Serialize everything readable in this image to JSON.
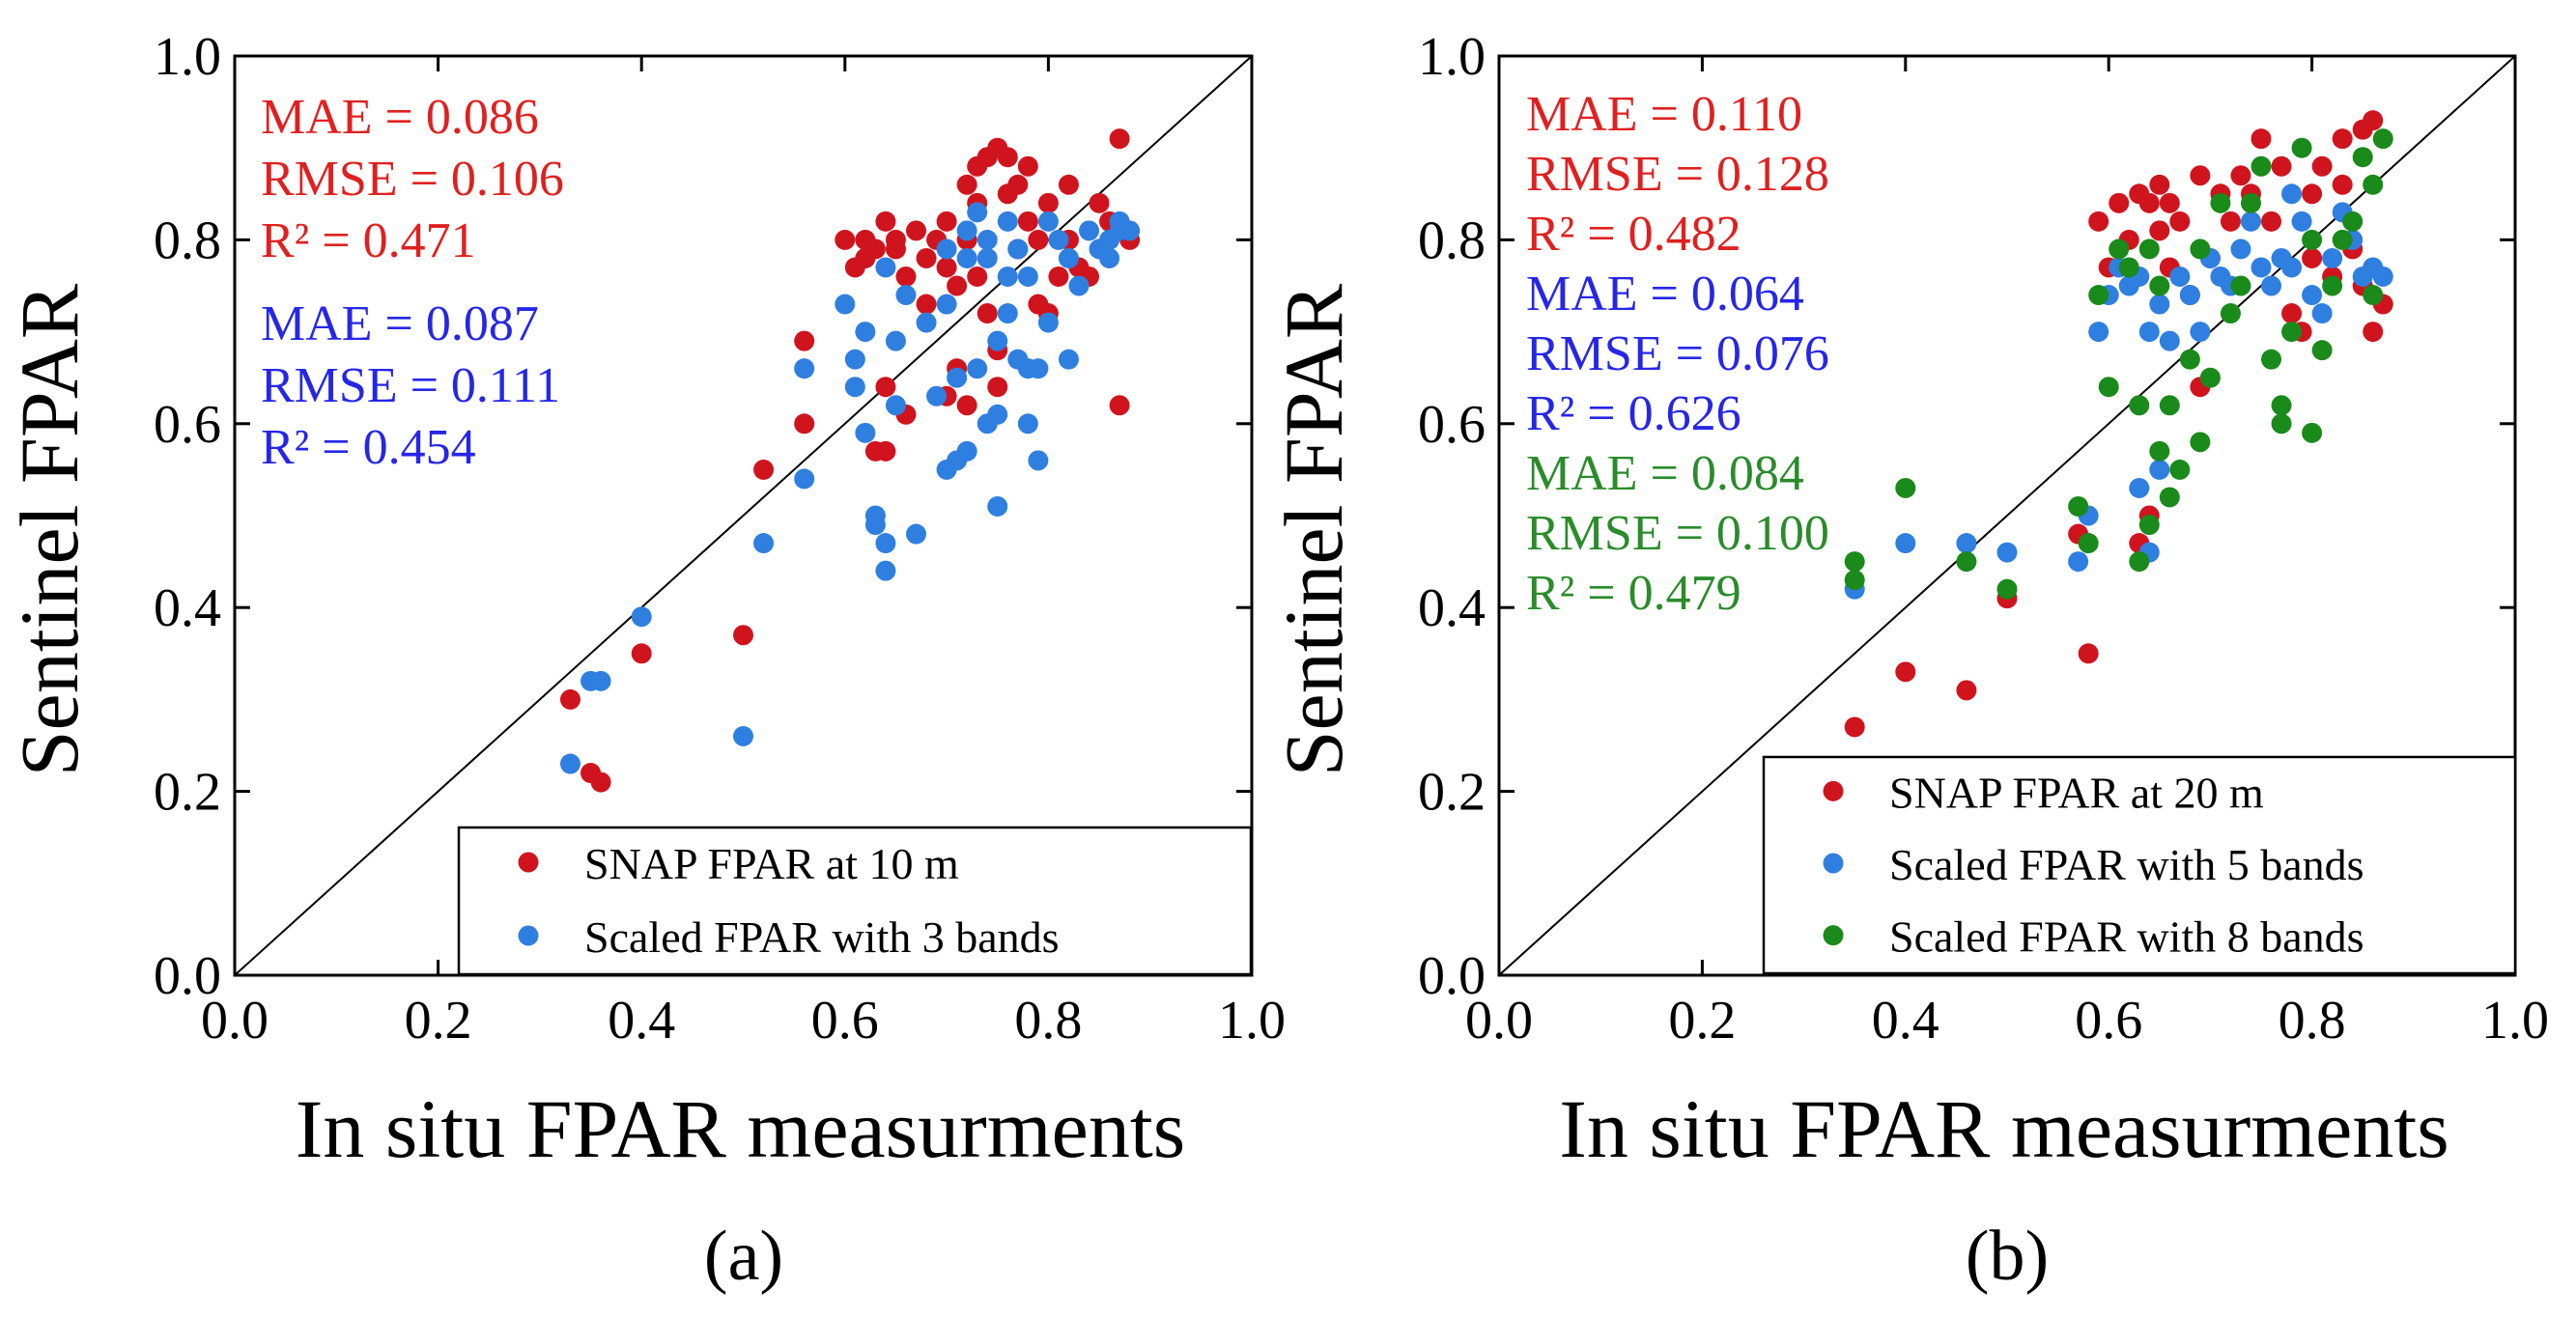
{
  "colors": {
    "snap": "#d0141e",
    "blue": "#2f7fe0",
    "green": "#1a8a1a",
    "axis": "#000000",
    "stat_red": "#e02020",
    "stat_blue": "#2626e8",
    "stat_green": "#2a8c2a"
  },
  "chart_data": [
    {
      "type": "scatter",
      "panel_label": "(a)",
      "xlabel": "In situ FPAR measurments",
      "ylabel": "Sentinel FPAR",
      "xlim": [
        0.0,
        1.0
      ],
      "ylim": [
        0.0,
        1.0
      ],
      "xticks": [
        "0.0",
        "0.2",
        "0.4",
        "0.6",
        "0.8",
        "1.0"
      ],
      "yticks": [
        "0.0",
        "0.2",
        "0.4",
        "0.6",
        "0.8",
        "1.0"
      ],
      "legend_position": "bottom-right",
      "stats": [
        {
          "color": "stat_red",
          "lines": [
            "MAE = 0.086",
            "RMSE = 0.106",
            "R² = 0.471"
          ]
        },
        {
          "color": "stat_blue",
          "lines": [
            "MAE = 0.087",
            "RMSE = 0.111",
            "R² = 0.454"
          ]
        }
      ],
      "series": [
        {
          "name": "SNAP FPAR at 10 m",
          "color": "snap",
          "points": [
            [
              0.33,
              0.3
            ],
            [
              0.35,
              0.22
            ],
            [
              0.36,
              0.21
            ],
            [
              0.4,
              0.35
            ],
            [
              0.5,
              0.37
            ],
            [
              0.52,
              0.55
            ],
            [
              0.56,
              0.6
            ],
            [
              0.56,
              0.69
            ],
            [
              0.6,
              0.8
            ],
            [
              0.61,
              0.77
            ],
            [
              0.62,
              0.78
            ],
            [
              0.62,
              0.8
            ],
            [
              0.63,
              0.79
            ],
            [
              0.63,
              0.57
            ],
            [
              0.64,
              0.57
            ],
            [
              0.64,
              0.64
            ],
            [
              0.64,
              0.82
            ],
            [
              0.65,
              0.8
            ],
            [
              0.65,
              0.79
            ],
            [
              0.66,
              0.76
            ],
            [
              0.66,
              0.61
            ],
            [
              0.67,
              0.81
            ],
            [
              0.68,
              0.78
            ],
            [
              0.69,
              0.8
            ],
            [
              0.7,
              0.82
            ],
            [
              0.7,
              0.77
            ],
            [
              0.71,
              0.75
            ],
            [
              0.71,
              0.66
            ],
            [
              0.72,
              0.8
            ],
            [
              0.72,
              0.86
            ],
            [
              0.73,
              0.84
            ],
            [
              0.73,
              0.88
            ],
            [
              0.74,
              0.72
            ],
            [
              0.74,
              0.89
            ],
            [
              0.75,
              0.9
            ],
            [
              0.75,
              0.68
            ],
            [
              0.75,
              0.64
            ],
            [
              0.76,
              0.85
            ],
            [
              0.76,
              0.89
            ],
            [
              0.77,
              0.86
            ],
            [
              0.77,
              0.79
            ],
            [
              0.78,
              0.82
            ],
            [
              0.78,
              0.88
            ],
            [
              0.79,
              0.8
            ],
            [
              0.79,
              0.73
            ],
            [
              0.8,
              0.72
            ],
            [
              0.8,
              0.84
            ],
            [
              0.81,
              0.76
            ],
            [
              0.82,
              0.8
            ],
            [
              0.82,
              0.86
            ],
            [
              0.83,
              0.77
            ],
            [
              0.84,
              0.76
            ],
            [
              0.85,
              0.84
            ],
            [
              0.86,
              0.82
            ],
            [
              0.87,
              0.91
            ],
            [
              0.87,
              0.62
            ],
            [
              0.88,
              0.8
            ],
            [
              0.73,
              0.76
            ],
            [
              0.68,
              0.73
            ],
            [
              0.7,
              0.63
            ],
            [
              0.72,
              0.62
            ]
          ]
        },
        {
          "name": "Scaled FPAR with 3 bands",
          "color": "blue",
          "points": [
            [
              0.33,
              0.23
            ],
            [
              0.35,
              0.32
            ],
            [
              0.36,
              0.32
            ],
            [
              0.4,
              0.39
            ],
            [
              0.5,
              0.26
            ],
            [
              0.52,
              0.47
            ],
            [
              0.56,
              0.54
            ],
            [
              0.56,
              0.66
            ],
            [
              0.6,
              0.73
            ],
            [
              0.61,
              0.67
            ],
            [
              0.61,
              0.64
            ],
            [
              0.62,
              0.59
            ],
            [
              0.62,
              0.7
            ],
            [
              0.63,
              0.5
            ],
            [
              0.63,
              0.49
            ],
            [
              0.64,
              0.44
            ],
            [
              0.64,
              0.47
            ],
            [
              0.64,
              0.77
            ],
            [
              0.65,
              0.62
            ],
            [
              0.65,
              0.69
            ],
            [
              0.66,
              0.74
            ],
            [
              0.67,
              0.48
            ],
            [
              0.68,
              0.71
            ],
            [
              0.69,
              0.63
            ],
            [
              0.7,
              0.55
            ],
            [
              0.7,
              0.73
            ],
            [
              0.7,
              0.79
            ],
            [
              0.71,
              0.56
            ],
            [
              0.71,
              0.65
            ],
            [
              0.72,
              0.57
            ],
            [
              0.72,
              0.78
            ],
            [
              0.72,
              0.81
            ],
            [
              0.73,
              0.66
            ],
            [
              0.73,
              0.83
            ],
            [
              0.74,
              0.6
            ],
            [
              0.74,
              0.8
            ],
            [
              0.75,
              0.61
            ],
            [
              0.75,
              0.51
            ],
            [
              0.75,
              0.69
            ],
            [
              0.76,
              0.82
            ],
            [
              0.76,
              0.72
            ],
            [
              0.77,
              0.67
            ],
            [
              0.77,
              0.79
            ],
            [
              0.78,
              0.6
            ],
            [
              0.78,
              0.76
            ],
            [
              0.79,
              0.56
            ],
            [
              0.79,
              0.66
            ],
            [
              0.8,
              0.82
            ],
            [
              0.8,
              0.71
            ],
            [
              0.81,
              0.8
            ],
            [
              0.82,
              0.67
            ],
            [
              0.82,
              0.78
            ],
            [
              0.83,
              0.75
            ],
            [
              0.84,
              0.81
            ],
            [
              0.85,
              0.79
            ],
            [
              0.86,
              0.8
            ],
            [
              0.86,
              0.78
            ],
            [
              0.87,
              0.82
            ],
            [
              0.87,
              0.81
            ],
            [
              0.88,
              0.81
            ],
            [
              0.74,
              0.78
            ],
            [
              0.76,
              0.76
            ],
            [
              0.78,
              0.66
            ]
          ]
        }
      ]
    },
    {
      "type": "scatter",
      "panel_label": "(b)",
      "xlabel": "In situ FPAR measurments",
      "ylabel": "Sentinel FPAR",
      "xlim": [
        0.0,
        1.0
      ],
      "ylim": [
        0.0,
        1.0
      ],
      "xticks": [
        "0.0",
        "0.2",
        "0.4",
        "0.6",
        "0.8",
        "1.0"
      ],
      "yticks": [
        "0.0",
        "0.2",
        "0.4",
        "0.6",
        "0.8",
        "1.0"
      ],
      "legend_position": "bottom-right",
      "stats": [
        {
          "color": "stat_red",
          "lines": [
            "MAE = 0.110",
            "RMSE = 0.128",
            "R² = 0.482"
          ]
        },
        {
          "color": "stat_blue",
          "lines": [
            "MAE = 0.064",
            "RMSE = 0.076",
            "R² = 0.626"
          ]
        },
        {
          "color": "stat_green",
          "lines": [
            "MAE = 0.084",
            "RMSE = 0.100",
            "R² = 0.479"
          ]
        }
      ],
      "series": [
        {
          "name": "SNAP FPAR at 20 m",
          "color": "snap",
          "points": [
            [
              0.35,
              0.27
            ],
            [
              0.4,
              0.33
            ],
            [
              0.46,
              0.31
            ],
            [
              0.5,
              0.41
            ],
            [
              0.57,
              0.48
            ],
            [
              0.58,
              0.35
            ],
            [
              0.59,
              0.82
            ],
            [
              0.6,
              0.77
            ],
            [
              0.61,
              0.84
            ],
            [
              0.62,
              0.8
            ],
            [
              0.63,
              0.85
            ],
            [
              0.63,
              0.47
            ],
            [
              0.64,
              0.84
            ],
            [
              0.64,
              0.5
            ],
            [
              0.65,
              0.86
            ],
            [
              0.65,
              0.81
            ],
            [
              0.66,
              0.84
            ],
            [
              0.66,
              0.77
            ],
            [
              0.67,
              0.82
            ],
            [
              0.68,
              0.74
            ],
            [
              0.69,
              0.64
            ],
            [
              0.69,
              0.87
            ],
            [
              0.7,
              0.78
            ],
            [
              0.71,
              0.85
            ],
            [
              0.72,
              0.82
            ],
            [
              0.73,
              0.87
            ],
            [
              0.74,
              0.85
            ],
            [
              0.75,
              0.91
            ],
            [
              0.76,
              0.82
            ],
            [
              0.77,
              0.88
            ],
            [
              0.78,
              0.72
            ],
            [
              0.79,
              0.7
            ],
            [
              0.8,
              0.85
            ],
            [
              0.81,
              0.88
            ],
            [
              0.82,
              0.76
            ],
            [
              0.83,
              0.91
            ],
            [
              0.84,
              0.79
            ],
            [
              0.85,
              0.92
            ],
            [
              0.85,
              0.75
            ],
            [
              0.86,
              0.93
            ],
            [
              0.86,
              0.7
            ],
            [
              0.87,
              0.73
            ],
            [
              0.83,
              0.86
            ],
            [
              0.8,
              0.78
            ]
          ]
        },
        {
          "name": "Scaled FPAR with 5 bands",
          "color": "blue",
          "points": [
            [
              0.35,
              0.42
            ],
            [
              0.4,
              0.47
            ],
            [
              0.46,
              0.47
            ],
            [
              0.5,
              0.46
            ],
            [
              0.57,
              0.45
            ],
            [
              0.58,
              0.5
            ],
            [
              0.59,
              0.7
            ],
            [
              0.6,
              0.74
            ],
            [
              0.61,
              0.77
            ],
            [
              0.62,
              0.75
            ],
            [
              0.63,
              0.53
            ],
            [
              0.63,
              0.76
            ],
            [
              0.64,
              0.46
            ],
            [
              0.64,
              0.7
            ],
            [
              0.65,
              0.55
            ],
            [
              0.65,
              0.73
            ],
            [
              0.66,
              0.69
            ],
            [
              0.67,
              0.76
            ],
            [
              0.68,
              0.74
            ],
            [
              0.69,
              0.7
            ],
            [
              0.7,
              0.78
            ],
            [
              0.71,
              0.76
            ],
            [
              0.72,
              0.75
            ],
            [
              0.73,
              0.79
            ],
            [
              0.74,
              0.82
            ],
            [
              0.75,
              0.77
            ],
            [
              0.76,
              0.75
            ],
            [
              0.77,
              0.78
            ],
            [
              0.78,
              0.77
            ],
            [
              0.79,
              0.82
            ],
            [
              0.8,
              0.74
            ],
            [
              0.81,
              0.72
            ],
            [
              0.82,
              0.78
            ],
            [
              0.83,
              0.83
            ],
            [
              0.84,
              0.8
            ],
            [
              0.85,
              0.76
            ],
            [
              0.86,
              0.77
            ],
            [
              0.87,
              0.76
            ],
            [
              0.78,
              0.85
            ]
          ]
        },
        {
          "name": "Scaled FPAR with 8 bands",
          "color": "green",
          "points": [
            [
              0.35,
              0.45
            ],
            [
              0.35,
              0.43
            ],
            [
              0.4,
              0.53
            ],
            [
              0.46,
              0.45
            ],
            [
              0.5,
              0.42
            ],
            [
              0.57,
              0.51
            ],
            [
              0.58,
              0.47
            ],
            [
              0.59,
              0.74
            ],
            [
              0.6,
              0.64
            ],
            [
              0.61,
              0.79
            ],
            [
              0.62,
              0.77
            ],
            [
              0.63,
              0.45
            ],
            [
              0.63,
              0.62
            ],
            [
              0.64,
              0.49
            ],
            [
              0.64,
              0.79
            ],
            [
              0.65,
              0.57
            ],
            [
              0.65,
              0.75
            ],
            [
              0.66,
              0.52
            ],
            [
              0.66,
              0.62
            ],
            [
              0.67,
              0.55
            ],
            [
              0.68,
              0.67
            ],
            [
              0.69,
              0.58
            ],
            [
              0.69,
              0.79
            ],
            [
              0.7,
              0.65
            ],
            [
              0.71,
              0.84
            ],
            [
              0.72,
              0.72
            ],
            [
              0.73,
              0.75
            ],
            [
              0.74,
              0.84
            ],
            [
              0.75,
              0.88
            ],
            [
              0.76,
              0.67
            ],
            [
              0.77,
              0.62
            ],
            [
              0.77,
              0.6
            ],
            [
              0.78,
              0.7
            ],
            [
              0.79,
              0.9
            ],
            [
              0.8,
              0.59
            ],
            [
              0.8,
              0.8
            ],
            [
              0.81,
              0.68
            ],
            [
              0.82,
              0.75
            ],
            [
              0.83,
              0.8
            ],
            [
              0.84,
              0.82
            ],
            [
              0.85,
              0.89
            ],
            [
              0.86,
              0.86
            ],
            [
              0.86,
              0.74
            ],
            [
              0.87,
              0.91
            ]
          ]
        }
      ]
    }
  ]
}
